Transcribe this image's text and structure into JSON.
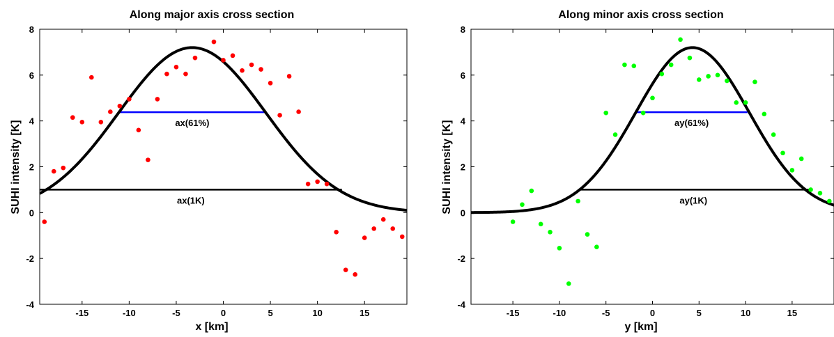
{
  "chart_data": [
    {
      "type": "scatter",
      "title": "Along major axis cross section",
      "xlabel": "x [km]",
      "ylabel": "SUHI intensity [K]",
      "xlim": [
        -19.5,
        19.5
      ],
      "ylim": [
        -4,
        8
      ],
      "xticks": [
        -15,
        -10,
        -5,
        0,
        5,
        10,
        15
      ],
      "yticks": [
        -4,
        -2,
        0,
        2,
        4,
        6,
        8
      ],
      "grid": false,
      "point_color": "#ff0000",
      "curve_color": "#000000",
      "points": [
        [
          -19,
          -0.4
        ],
        [
          -18,
          1.8
        ],
        [
          -17,
          1.95
        ],
        [
          -16,
          4.15
        ],
        [
          -15,
          3.95
        ],
        [
          -14,
          5.9
        ],
        [
          -13,
          3.95
        ],
        [
          -12,
          4.4
        ],
        [
          -11,
          4.65
        ],
        [
          -10,
          4.95
        ],
        [
          -9,
          3.6
        ],
        [
          -8,
          2.3
        ],
        [
          -7,
          4.95
        ],
        [
          -6,
          6.05
        ],
        [
          -5,
          6.35
        ],
        [
          -4,
          6.05
        ],
        [
          -3,
          6.75
        ],
        [
          -1,
          7.45
        ],
        [
          0,
          6.65
        ],
        [
          1,
          6.85
        ],
        [
          2,
          6.2
        ],
        [
          3,
          6.45
        ],
        [
          4,
          6.25
        ],
        [
          5,
          5.65
        ],
        [
          6,
          4.25
        ],
        [
          7,
          5.95
        ],
        [
          8,
          4.4
        ],
        [
          9,
          1.25
        ],
        [
          10,
          1.35
        ],
        [
          11,
          1.25
        ],
        [
          12,
          -0.85
        ],
        [
          13,
          -2.5
        ],
        [
          14,
          -2.7
        ],
        [
          15,
          -1.1
        ],
        [
          16,
          -0.7
        ],
        [
          17,
          -0.3
        ],
        [
          18,
          -0.7
        ],
        [
          19,
          -1.05
        ]
      ],
      "gaussian": {
        "peak": 7.2,
        "center": -3.3,
        "sigma": 7.8
      },
      "lines": [
        {
          "label": "ax(61%)",
          "color": "#0000ff",
          "y": 4.38,
          "x1": -11.1,
          "x2": 4.5
        },
        {
          "label": "ax(1K)",
          "color": "#000000",
          "y": 1.0,
          "x1": -19.5,
          "x2": 12.6
        }
      ]
    },
    {
      "type": "scatter",
      "title": "Along minor axis cross section",
      "xlabel": "y [km]",
      "ylabel": "SUHI intensity [K]",
      "xlim": [
        -19.5,
        19.5
      ],
      "ylim": [
        -4,
        8
      ],
      "xticks": [
        -15,
        -10,
        -5,
        0,
        5,
        10,
        15
      ],
      "yticks": [
        -4,
        -2,
        0,
        2,
        4,
        6,
        8
      ],
      "grid": false,
      "point_color": "#00ff00",
      "curve_color": "#000000",
      "points": [
        [
          -15,
          -0.4
        ],
        [
          -14,
          0.35
        ],
        [
          -13,
          0.95
        ],
        [
          -12,
          -0.5
        ],
        [
          -11,
          -0.85
        ],
        [
          -10,
          -1.55
        ],
        [
          -9,
          -3.1
        ],
        [
          -8,
          0.5
        ],
        [
          -7,
          -0.95
        ],
        [
          -6,
          -1.5
        ],
        [
          -5,
          4.35
        ],
        [
          -4,
          3.4
        ],
        [
          -3,
          6.45
        ],
        [
          -2,
          6.4
        ],
        [
          -1,
          4.35
        ],
        [
          0,
          5.0
        ],
        [
          1,
          6.05
        ],
        [
          2,
          6.45
        ],
        [
          3,
          7.55
        ],
        [
          4,
          6.75
        ],
        [
          5,
          5.8
        ],
        [
          6,
          5.95
        ],
        [
          7,
          6.0
        ],
        [
          8,
          5.75
        ],
        [
          9,
          4.8
        ],
        [
          10,
          4.8
        ],
        [
          11,
          5.7
        ],
        [
          12,
          4.3
        ],
        [
          13,
          3.4
        ],
        [
          14,
          2.6
        ],
        [
          15,
          1.85
        ],
        [
          16,
          2.35
        ],
        [
          17,
          1.0
        ],
        [
          18,
          0.85
        ],
        [
          19,
          0.5
        ]
      ],
      "gaussian": {
        "peak": 7.2,
        "center": 4.3,
        "sigma": 6.1
      },
      "lines": [
        {
          "label": "ay(61%)",
          "color": "#0000ff",
          "y": 4.38,
          "x1": -1.8,
          "x2": 10.2
        },
        {
          "label": "ay(1K)",
          "color": "#000000",
          "y": 1.0,
          "x1": -8.0,
          "x2": 16.8
        }
      ]
    }
  ]
}
